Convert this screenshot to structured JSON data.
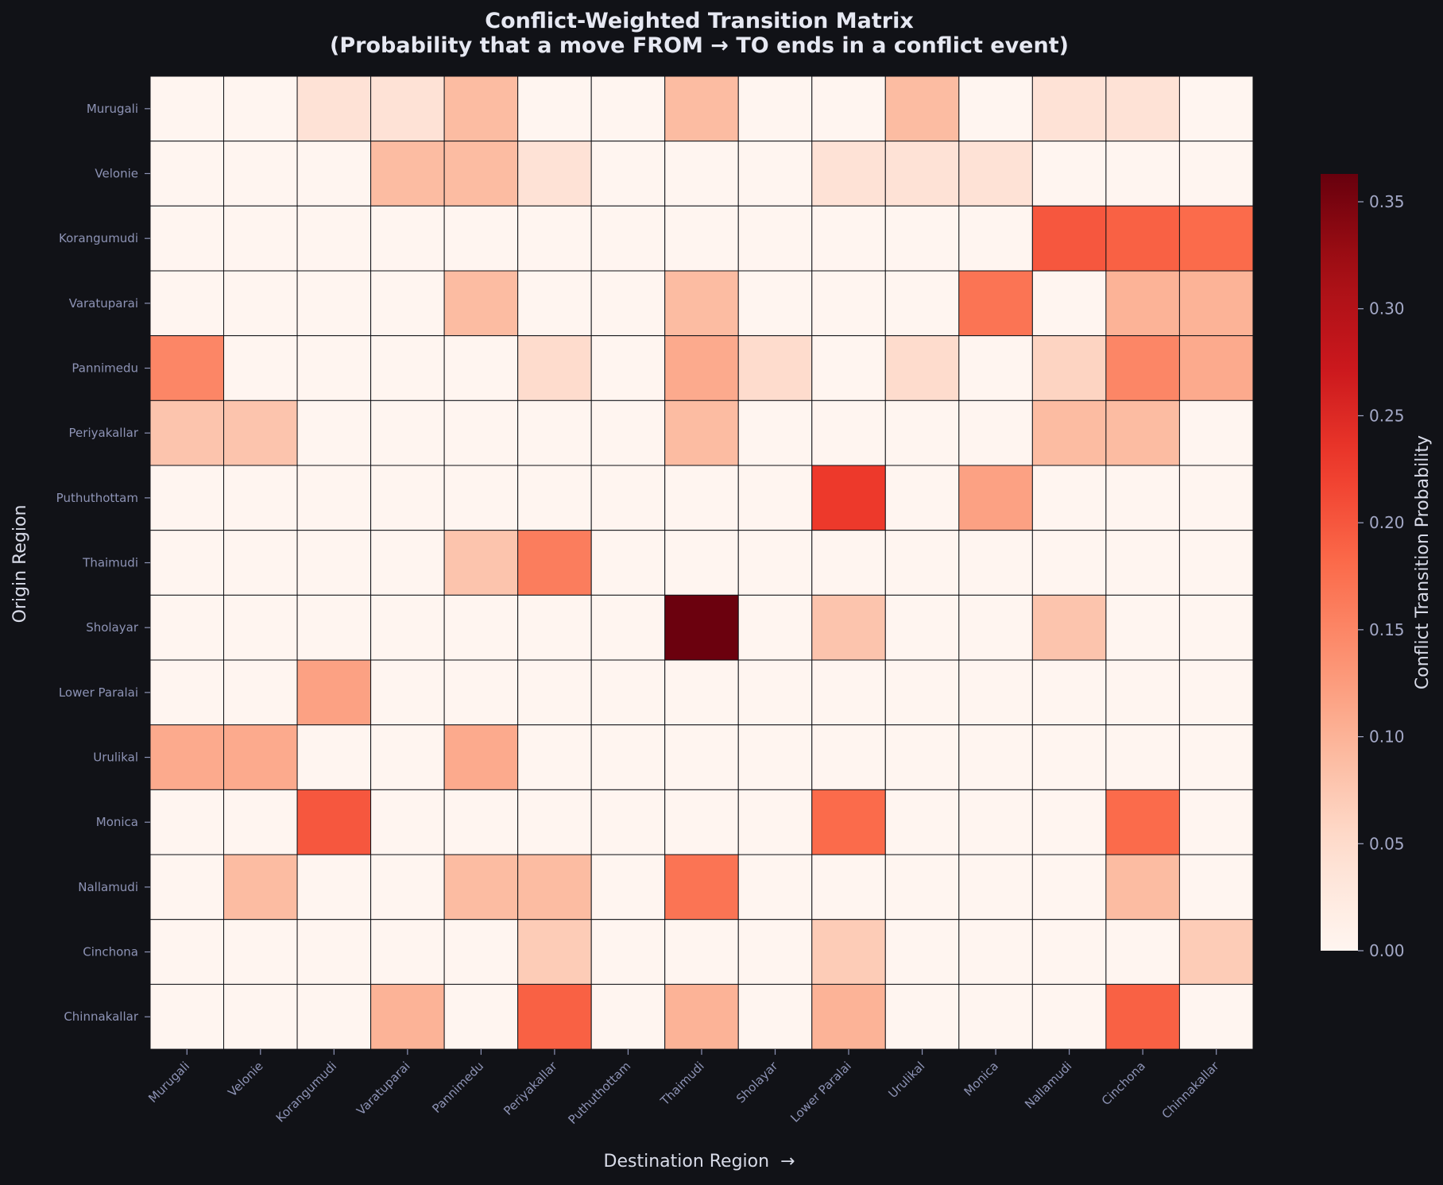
{
  "chart_data": {
    "type": "heatmap",
    "title_line1": "Conflict-Weighted Transition Matrix",
    "title_line2": "(Probability that a move FROM → TO ends in a conflict event)",
    "xlabel": "Destination Region  →",
    "ylabel": "Origin Region",
    "colorbar_label": "Conflict Transition Probability",
    "colormap": "Reds",
    "vmin": 0.0,
    "vmax": 0.363,
    "colorbar_ticks": [
      0.0,
      0.05,
      0.1,
      0.15,
      0.2,
      0.25,
      0.3,
      0.35
    ],
    "colorbar_tick_labels": [
      "0.00",
      "0.05",
      "0.10",
      "0.15",
      "0.20",
      "0.25",
      "0.30",
      "0.35"
    ],
    "rows": [
      "Murugali",
      "Velonie",
      "Korangumudi",
      "Varatuparai",
      "Pannimedu",
      "Periyakallar",
      "Puthuthottam",
      "Thaimudi",
      "Sholayar",
      "Lower Paralai",
      "Urulikal",
      "Monica",
      "Nallamudi",
      "Cinchona",
      "Chinnakallar"
    ],
    "columns": [
      "Murugali",
      "Velonie",
      "Korangumudi",
      "Varatuparai",
      "Pannimedu",
      "Periyakallar",
      "Puthuthottam",
      "Thaimudi",
      "Sholayar",
      "Lower Paralai",
      "Urulikal",
      "Monica",
      "Nallamudi",
      "Cinchona",
      "Chinnakallar"
    ],
    "values": [
      [
        0.0,
        0.0,
        0.04,
        0.04,
        0.09,
        0.0,
        0.0,
        0.09,
        0.0,
        0.0,
        0.09,
        0.0,
        0.04,
        0.04,
        0.0
      ],
      [
        0.0,
        0.0,
        0.0,
        0.09,
        0.09,
        0.04,
        0.0,
        0.0,
        0.0,
        0.04,
        0.04,
        0.04,
        0.0,
        0.0,
        0.0
      ],
      [
        0.0,
        0.0,
        0.0,
        0.0,
        0.0,
        0.0,
        0.0,
        0.0,
        0.0,
        0.0,
        0.0,
        0.0,
        0.2,
        0.19,
        0.18
      ],
      [
        0.0,
        0.0,
        0.0,
        0.0,
        0.09,
        0.0,
        0.0,
        0.09,
        0.0,
        0.0,
        0.0,
        0.17,
        0.0,
        0.1,
        0.1
      ],
      [
        0.15,
        0.0,
        0.0,
        0.0,
        0.0,
        0.05,
        0.0,
        0.11,
        0.05,
        0.0,
        0.05,
        0.0,
        0.06,
        0.15,
        0.11
      ],
      [
        0.08,
        0.08,
        0.0,
        0.0,
        0.0,
        0.0,
        0.0,
        0.09,
        0.0,
        0.0,
        0.0,
        0.0,
        0.09,
        0.09,
        0.0
      ],
      [
        0.0,
        0.0,
        0.0,
        0.0,
        0.0,
        0.0,
        0.0,
        0.0,
        0.0,
        0.23,
        0.0,
        0.12,
        0.0,
        0.0,
        0.0
      ],
      [
        0.0,
        0.0,
        0.0,
        0.0,
        0.08,
        0.16,
        0.0,
        0.0,
        0.0,
        0.0,
        0.0,
        0.0,
        0.0,
        0.0,
        0.0
      ],
      [
        0.0,
        0.0,
        0.0,
        0.0,
        0.0,
        0.0,
        0.0,
        0.36,
        0.0,
        0.08,
        0.0,
        0.0,
        0.08,
        0.0,
        0.0
      ],
      [
        0.0,
        0.0,
        0.12,
        0.0,
        0.0,
        0.0,
        0.0,
        0.0,
        0.0,
        0.0,
        0.0,
        0.0,
        0.0,
        0.0,
        0.0
      ],
      [
        0.11,
        0.11,
        0.0,
        0.0,
        0.11,
        0.0,
        0.0,
        0.0,
        0.0,
        0.0,
        0.0,
        0.0,
        0.0,
        0.0,
        0.0
      ],
      [
        0.0,
        0.0,
        0.2,
        0.0,
        0.0,
        0.0,
        0.0,
        0.0,
        0.0,
        0.18,
        0.0,
        0.0,
        0.0,
        0.18,
        0.0
      ],
      [
        0.0,
        0.09,
        0.0,
        0.0,
        0.09,
        0.09,
        0.0,
        0.17,
        0.0,
        0.0,
        0.0,
        0.0,
        0.0,
        0.09,
        0.0
      ],
      [
        0.0,
        0.0,
        0.0,
        0.0,
        0.0,
        0.07,
        0.0,
        0.0,
        0.0,
        0.07,
        0.0,
        0.0,
        0.0,
        0.0,
        0.07
      ],
      [
        0.0,
        0.0,
        0.0,
        0.1,
        0.0,
        0.19,
        0.0,
        0.1,
        0.0,
        0.1,
        0.0,
        0.0,
        0.0,
        0.19,
        0.0
      ]
    ],
    "grid": true,
    "colors": {
      "background": "#111217",
      "title_text": "#e6e8f2",
      "axis_label_text": "#d8dbe8",
      "tick_label_text": "#8d93b5",
      "colorbar_tick_text": "#a3a8c6",
      "cell_border": "#111217"
    }
  }
}
